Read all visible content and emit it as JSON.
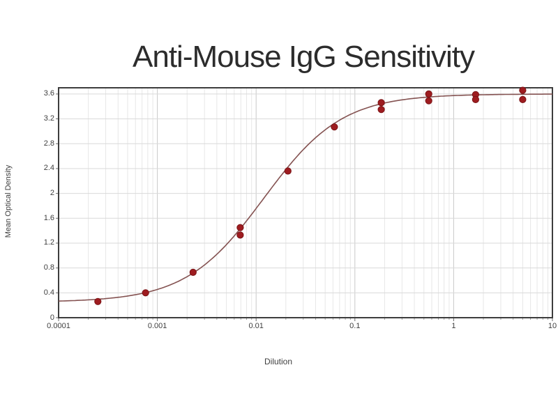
{
  "chart_data": {
    "type": "scatter",
    "title": "Anti-Mouse IgG Sensitivity",
    "xlabel": "Dilution",
    "ylabel": "Mean Optical Density",
    "x_scale": "log",
    "xlim": [
      0.0001,
      10
    ],
    "ylim": [
      0,
      3.7
    ],
    "grid": true,
    "legend": "none",
    "x_ticks": {
      "values": [
        0.0001,
        0.001,
        0.01,
        0.1,
        1,
        10
      ],
      "labels": [
        "0.0001",
        "0.001",
        "0.01",
        "0.1",
        "1",
        "10"
      ]
    },
    "y_ticks": {
      "values": [
        0,
        0.4,
        0.8,
        1.2,
        1.6,
        2,
        2.4,
        2.8,
        3.2,
        3.6
      ],
      "labels": [
        "0",
        "0.4",
        "0.8",
        "1.2",
        "1.6",
        "2",
        "2.4",
        "2.8",
        "3.2",
        "3.6"
      ]
    },
    "series": [
      {
        "name": "mean-od-points",
        "type": "scatter",
        "color": "#9e1c20",
        "edge_color": "#7a1315",
        "points": [
          [
            0.00025,
            0.26
          ],
          [
            0.00076,
            0.4
          ],
          [
            0.0023,
            0.73
          ],
          [
            0.0069,
            1.45
          ],
          [
            0.0069,
            1.33
          ],
          [
            0.021,
            2.36
          ],
          [
            0.062,
            3.07
          ],
          [
            0.185,
            3.46
          ],
          [
            0.185,
            3.35
          ],
          [
            0.56,
            3.6
          ],
          [
            0.56,
            3.49
          ],
          [
            1.67,
            3.59
          ],
          [
            1.67,
            3.51
          ],
          [
            5.0,
            3.66
          ],
          [
            5.0,
            3.51
          ]
        ]
      },
      {
        "name": "4pl-fit-curve",
        "type": "line",
        "color": "#845251",
        "fit": {
          "model": "4PL",
          "bottom": 0.25,
          "top": 3.6,
          "ec50": 0.012,
          "hill": 1.1
        }
      }
    ],
    "style": {
      "frame_color": "#3d3d3d",
      "major_grid_color": "#c9c9c9",
      "minor_grid_color": "#e7e7e7",
      "h_grid_color": "#d9d9d9",
      "tick_color": "#6a6a6a",
      "minor_tick_color": "#9a9a9a",
      "title_color": "#2c2c2c",
      "label_color": "#3e3e3e"
    }
  }
}
